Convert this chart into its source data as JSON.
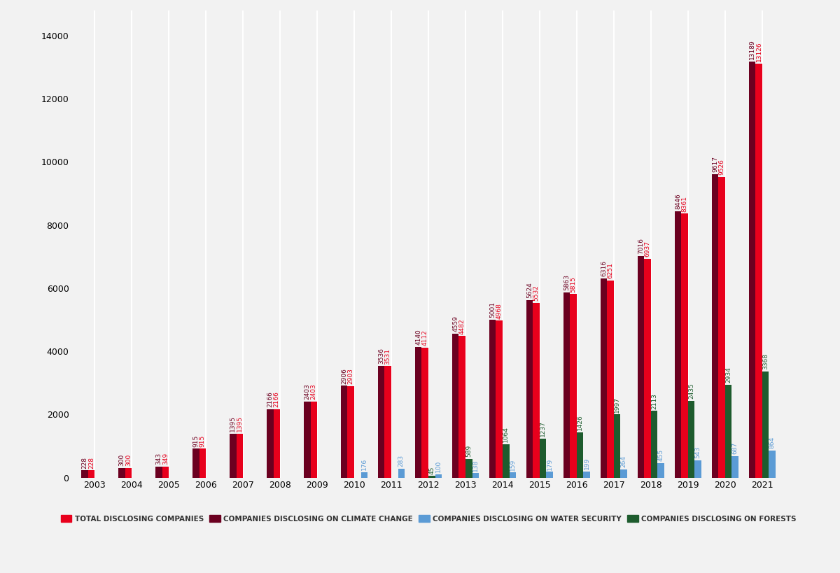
{
  "years": [
    2003,
    2004,
    2005,
    2006,
    2007,
    2008,
    2009,
    2010,
    2011,
    2012,
    2013,
    2014,
    2015,
    2016,
    2017,
    2018,
    2019,
    2020,
    2021
  ],
  "total_disclosing": [
    228,
    300,
    349,
    915,
    1395,
    2166,
    2403,
    2903,
    3531,
    4112,
    4482,
    4968,
    5532,
    5815,
    6251,
    6937,
    8361,
    9526,
    13126
  ],
  "climate_change": [
    228,
    300,
    343,
    915,
    1395,
    2166,
    2403,
    2906,
    3536,
    4140,
    4559,
    5001,
    5624,
    5863,
    6316,
    7016,
    8446,
    9617,
    13189
  ],
  "water_security": [
    0,
    0,
    0,
    0,
    0,
    0,
    0,
    176,
    283,
    100,
    138,
    159,
    179,
    199,
    264,
    455,
    543,
    687,
    864
  ],
  "forests": [
    0,
    0,
    0,
    0,
    0,
    0,
    0,
    0,
    0,
    45,
    589,
    1064,
    1237,
    1426,
    1997,
    2113,
    2435,
    2934,
    3368
  ],
  "colors": {
    "total": "#e8001c",
    "climate": "#6b0020",
    "water": "#5b9bd5",
    "forests": "#1e5c2e"
  },
  "bar_width": 0.18,
  "ylim": [
    0,
    14800
  ],
  "yticks": [
    0,
    2000,
    4000,
    6000,
    8000,
    10000,
    12000,
    14000
  ],
  "background_color": "#f2f2f2",
  "plot_background": "#f2f2f2",
  "legend_labels": [
    "TOTAL DISCLOSING COMPANIES",
    "COMPANIES DISCLOSING ON CLIMATE CHANGE",
    "COMPANIES DISCLOSING ON WATER SECURITY",
    "COMPANIES DISCLOSING ON FORESTS"
  ],
  "label_fontsize": 6.5,
  "axis_label_fontsize": 9
}
